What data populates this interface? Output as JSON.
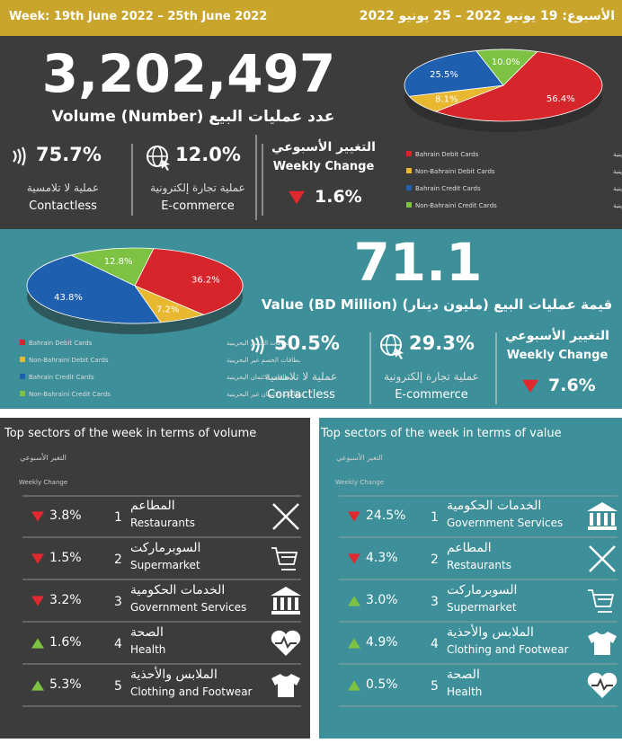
{
  "header": {
    "left": "Week: 19th June 2022 – 25th June 2022",
    "right": "الأسبوع: 19 يونيو 2022 – 25 يونيو 2022"
  },
  "volume": {
    "total": "3,202,497",
    "label": "Volume (Number) عدد عمليات البيع",
    "contactless": {
      "value": "75.7%",
      "ar": "عملية لا تلامسية",
      "en": "Contactless"
    },
    "ecommerce": {
      "value": "12.0%",
      "ar": "عملية تجارة إلكترونية",
      "en": "E-commerce"
    },
    "weekly": {
      "ar": "التغيير الأسبوعي",
      "en": "Weekly Change",
      "value": "1.6%",
      "direction": "down"
    }
  },
  "value": {
    "total": "71.1",
    "label": "Value (BD Million) قيمة عمليات البيع (مليون دينار)",
    "contactless": {
      "value": "50.5%",
      "ar": "عملية لا تلامسية",
      "en": "Contactless"
    },
    "ecommerce": {
      "value": "29.3%",
      "ar": "عملية تجارة إلكترونية",
      "en": "E-commerce"
    },
    "weekly": {
      "ar": "التغيير الأسبوعي",
      "en": "Weekly Change",
      "value": "7.6%",
      "direction": "down"
    }
  },
  "chart_data": [
    {
      "type": "pie",
      "categories": [
        "Bahrain Debit Cards",
        "Non-Bahraini Debit Cards",
        "Bahrain Credit Cards",
        "Non-Bahraini Credit Cards"
      ],
      "categories_ar": [
        "بطاقات الخصم البحرينية",
        "بطاقات الخصم غير البحرينية",
        "بطاقات الائتمان البحرينية",
        "بطاقات الائتمان غير البحرينية"
      ],
      "values": [
        56.4,
        8.1,
        25.5,
        10.0
      ],
      "value_labels": [
        "56.4%",
        "8.1%",
        "25.5%",
        "10.0%"
      ],
      "colors": [
        "#d7262b",
        "#e8b830",
        "#1f5fb0",
        "#7dc242"
      ]
    },
    {
      "type": "pie",
      "categories": [
        "Bahrain Debit Cards",
        "Non-Bahraini Debit Cards",
        "Bahrain Credit Cards",
        "Non-Bahraini Credit Cards"
      ],
      "categories_ar": [
        "بطاقات الخصم البحرينية",
        "بطاقات الخصم غير البحرينية",
        "بطاقات الائتمان البحرينية",
        "بطاقات الائتمان غير البحرينية"
      ],
      "values": [
        36.2,
        7.2,
        43.8,
        12.8
      ],
      "value_labels": [
        "36.2%",
        "7.2%",
        "43.8%",
        "12.8%"
      ],
      "colors": [
        "#d7262b",
        "#e8b830",
        "#1f5fb0",
        "#7dc242"
      ]
    }
  ],
  "sectors_volume": {
    "title": "Top sectors of the week in terms of volume",
    "header_ar": "التغير الأسبوعي",
    "header_en": "Weekly Change",
    "rows": [
      {
        "change": "3.8%",
        "direction": "down",
        "rank": "1",
        "ar": "المطاعم",
        "en": "Restaurants"
      },
      {
        "change": "1.5%",
        "direction": "down",
        "rank": "2",
        "ar": "السوبرماركت",
        "en": "Supermarket"
      },
      {
        "change": "3.2%",
        "direction": "down",
        "rank": "3",
        "ar": "الخدمات الحكومية",
        "en": "Government Services"
      },
      {
        "change": "1.6%",
        "direction": "up",
        "rank": "4",
        "ar": "الصحة",
        "en": "Health"
      },
      {
        "change": "5.3%",
        "direction": "up",
        "rank": "5",
        "ar": "الملابس والأحذية",
        "en": "Clothing and Footwear"
      }
    ]
  },
  "sectors_value": {
    "title": "Top sectors of the week in terms of value",
    "header_ar": "التغير الأسبوعي",
    "header_en": "Weekly Change",
    "rows": [
      {
        "change": "24.5%",
        "direction": "down",
        "rank": "1",
        "ar": "الخدمات الحكومية",
        "en": "Government Services"
      },
      {
        "change": "4.3%",
        "direction": "down",
        "rank": "2",
        "ar": "المطاعم",
        "en": "Restaurants"
      },
      {
        "change": "3.0%",
        "direction": "up",
        "rank": "3",
        "ar": "السوبرماركت",
        "en": "Supermarket"
      },
      {
        "change": "4.9%",
        "direction": "up",
        "rank": "4",
        "ar": "الملابس والأحذية",
        "en": "Clothing and Footwear"
      },
      {
        "change": "0.5%",
        "direction": "up",
        "rank": "5",
        "ar": "الصحة",
        "en": "Health"
      }
    ]
  }
}
